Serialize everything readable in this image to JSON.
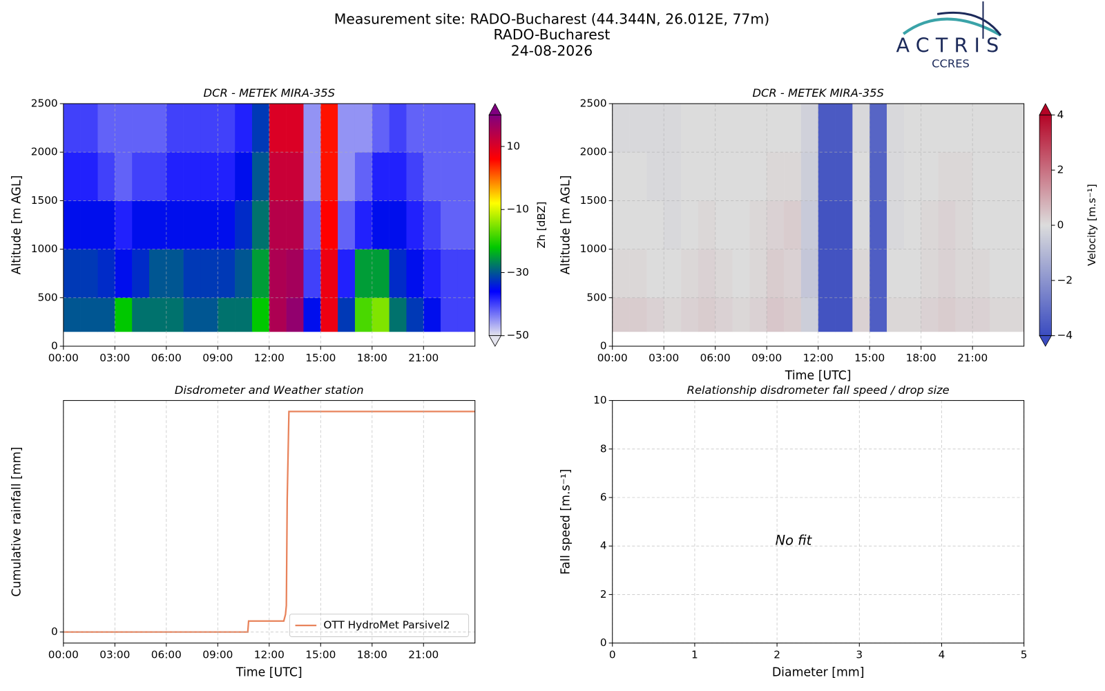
{
  "header": {
    "lines": [
      "Measurement site: RADO-Bucharest (44.344N, 26.012E, 77m)",
      "RADO-Bucharest",
      "24-08-2026"
    ]
  },
  "logo": {
    "name": "ACTRIS",
    "sub": "CCRES"
  },
  "chart_data": [
    {
      "type": "heatmap",
      "title": "DCR - METEK MIRA-35S",
      "ylabel": "Altitude [m AGL]",
      "grid": true,
      "xlim": [
        0,
        24
      ],
      "xticks": [
        {
          "value": 0,
          "label": "00:00"
        },
        {
          "value": 3,
          "label": "03:00"
        },
        {
          "value": 6,
          "label": "06:00"
        },
        {
          "value": 9,
          "label": "09:00"
        },
        {
          "value": 12,
          "label": "12:00"
        },
        {
          "value": 15,
          "label": "15:00"
        },
        {
          "value": 18,
          "label": "18:00"
        },
        {
          "value": 21,
          "label": "21:00"
        }
      ],
      "ylim": [
        0,
        2500
      ],
      "yticks": [
        0,
        500,
        1000,
        1500,
        2000,
        2500
      ],
      "xbins": [
        0,
        1,
        2,
        3,
        4,
        5,
        6,
        7,
        8,
        9,
        10,
        11,
        12,
        13,
        14,
        15,
        16,
        17,
        18,
        19,
        20,
        21,
        22,
        23,
        24
      ],
      "ybins": [
        150,
        500,
        1000,
        1500,
        2000,
        2500
      ],
      "values": [
        [
          -30,
          -30,
          -30,
          -22,
          -28,
          -28,
          -28,
          -30,
          -30,
          -28,
          -28,
          -22,
          15,
          18,
          -35,
          8,
          -32,
          -18,
          -15,
          -28,
          -32,
          -35,
          -40,
          -40
        ],
        [
          -32,
          -32,
          -33,
          -35,
          -33,
          -30,
          -30,
          -32,
          -32,
          -32,
          -30,
          -25,
          15,
          16,
          -40,
          8,
          -38,
          -25,
          -25,
          -33,
          -35,
          -38,
          -40,
          -40
        ],
        [
          -35,
          -35,
          -35,
          -38,
          -35,
          -35,
          -35,
          -35,
          -35,
          -35,
          -33,
          -28,
          14,
          14,
          -42,
          6,
          -42,
          -38,
          -35,
          -35,
          -38,
          -40,
          -42,
          -42
        ],
        [
          -38,
          -38,
          -40,
          -42,
          -40,
          -40,
          -38,
          -38,
          -38,
          -38,
          -35,
          -30,
          12,
          12,
          -45,
          5,
          -45,
          -42,
          -38,
          -38,
          -40,
          -42,
          -42,
          -42
        ],
        [
          -40,
          -40,
          -42,
          -42,
          -42,
          -42,
          -40,
          -40,
          -40,
          -40,
          -38,
          -32,
          10,
          10,
          -45,
          5,
          -45,
          -45,
          -42,
          -40,
          -42,
          -42,
          -42,
          -42
        ]
      ],
      "clim": [
        -50,
        20
      ],
      "colormap": [
        "#e4e4ee",
        "#0000ff",
        "#00c800",
        "#ffff00",
        "#ff0000",
        "#800080"
      ],
      "colorbar": {
        "label": "Zh [dBZ]",
        "ticks": [
          {
            "value": -50,
            "label": "−50"
          },
          {
            "value": -30,
            "label": "−30"
          },
          {
            "value": -10,
            "label": "−10"
          },
          10
        ]
      }
    },
    {
      "type": "heatmap",
      "title": "DCR - METEK MIRA-35S",
      "ylabel": "Altitude [m AGL]",
      "xlabel": "Time [UTC]",
      "grid": true,
      "xlim": [
        0,
        24
      ],
      "xticks": [
        {
          "value": 0,
          "label": "00:00"
        },
        {
          "value": 3,
          "label": "03:00"
        },
        {
          "value": 6,
          "label": "06:00"
        },
        {
          "value": 9,
          "label": "09:00"
        },
        {
          "value": 12,
          "label": "12:00"
        },
        {
          "value": 15,
          "label": "15:00"
        },
        {
          "value": 18,
          "label": "18:00"
        },
        {
          "value": 21,
          "label": "21:00"
        }
      ],
      "ylim": [
        0,
        2500
      ],
      "yticks": [
        0,
        500,
        1000,
        1500,
        2000,
        2500
      ],
      "xbins": [
        0,
        1,
        2,
        3,
        4,
        5,
        6,
        7,
        8,
        9,
        10,
        11,
        12,
        13,
        14,
        15,
        16,
        17,
        18,
        19,
        20,
        21,
        22,
        23,
        24
      ],
      "ybins": [
        150,
        500,
        1000,
        1500,
        2000,
        2500
      ],
      "values": [
        [
          0.3,
          0.3,
          0.2,
          0.1,
          0.2,
          0.3,
          0.2,
          0.1,
          0.2,
          0.4,
          0.3,
          -0.4,
          -3.8,
          -3.8,
          0.2,
          -3.5,
          0.1,
          0.1,
          0.2,
          0.3,
          0.2,
          0.2,
          0.1,
          0.1
        ],
        [
          0.1,
          0.1,
          0,
          0,
          0.1,
          0.2,
          0.1,
          0,
          0.1,
          0.3,
          0.2,
          -0.6,
          -3.8,
          -3.8,
          0.1,
          -3.5,
          0,
          0,
          0.1,
          0.2,
          0.1,
          0.1,
          0,
          0
        ],
        [
          0,
          0,
          0,
          -0.1,
          0,
          0.1,
          0,
          0,
          0.1,
          0.2,
          0.3,
          -0.5,
          -3.8,
          -3.8,
          0,
          -3.5,
          -0.1,
          0,
          0.1,
          0.2,
          0.1,
          0,
          0,
          0
        ],
        [
          0,
          0,
          -0.1,
          -0.1,
          0,
          0,
          0,
          0,
          0,
          0.1,
          0.1,
          -0.4,
          -3.7,
          -3.7,
          0,
          -3.4,
          -0.1,
          0,
          0,
          0.1,
          0.1,
          0,
          0,
          0
        ],
        [
          -0.1,
          -0.1,
          -0.1,
          -0.1,
          0,
          0,
          0,
          0,
          0,
          0,
          0,
          -0.3,
          -3.6,
          -3.6,
          -0.1,
          -3.3,
          -0.1,
          0,
          0,
          0,
          0,
          0,
          0,
          0
        ]
      ],
      "clim": [
        -4,
        4
      ],
      "colormap": [
        "#3b4cc0",
        "#dcdcdc",
        "#b40426"
      ],
      "colorbar": {
        "label": "Velocity [m.s⁻¹]",
        "ticks": [
          {
            "value": -4,
            "label": "−4"
          },
          {
            "value": -2,
            "label": "−2"
          },
          0,
          2,
          4
        ]
      }
    },
    {
      "type": "line",
      "title": "Disdrometer and Weather station",
      "ylabel": "Cumulative rainfall [mm]",
      "xlabel": "Time [UTC]",
      "grid": true,
      "xlim": [
        0,
        24
      ],
      "xticks": [
        {
          "value": 0,
          "label": "00:00"
        },
        {
          "value": 3,
          "label": "03:00"
        },
        {
          "value": 6,
          "label": "06:00"
        },
        {
          "value": 9,
          "label": "09:00"
        },
        {
          "value": 12,
          "label": "12:00"
        },
        {
          "value": 15,
          "label": "15:00"
        },
        {
          "value": 18,
          "label": "18:00"
        },
        {
          "value": 21,
          "label": "21:00"
        }
      ],
      "ylim": [
        -0.5,
        10.5
      ],
      "yticks": [
        0
      ],
      "x": [
        0,
        10.75,
        10.8,
        12.85,
        12.95,
        13.0,
        13.05,
        13.15,
        24
      ],
      "series": [
        {
          "name": "OTT HydroMet Parsivel2",
          "color": "#e8825a",
          "values": [
            0,
            0,
            0.5,
            0.5,
            0.8,
            1.2,
            6,
            10,
            10
          ]
        }
      ],
      "legend": "lower right"
    },
    {
      "type": "scatter",
      "title": "Relationship disdrometer fall speed / drop size",
      "ylabel": "Fall speed [m.s⁻¹]",
      "xlabel": "Diameter [mm]",
      "grid": true,
      "xlim": [
        0,
        5
      ],
      "xticks": [
        0,
        1,
        2,
        3,
        4,
        5
      ],
      "ylim": [
        0,
        10
      ],
      "yticks": [
        0,
        2,
        4,
        6,
        8,
        10
      ],
      "x": [],
      "values": [],
      "annotation": "No fit"
    }
  ]
}
